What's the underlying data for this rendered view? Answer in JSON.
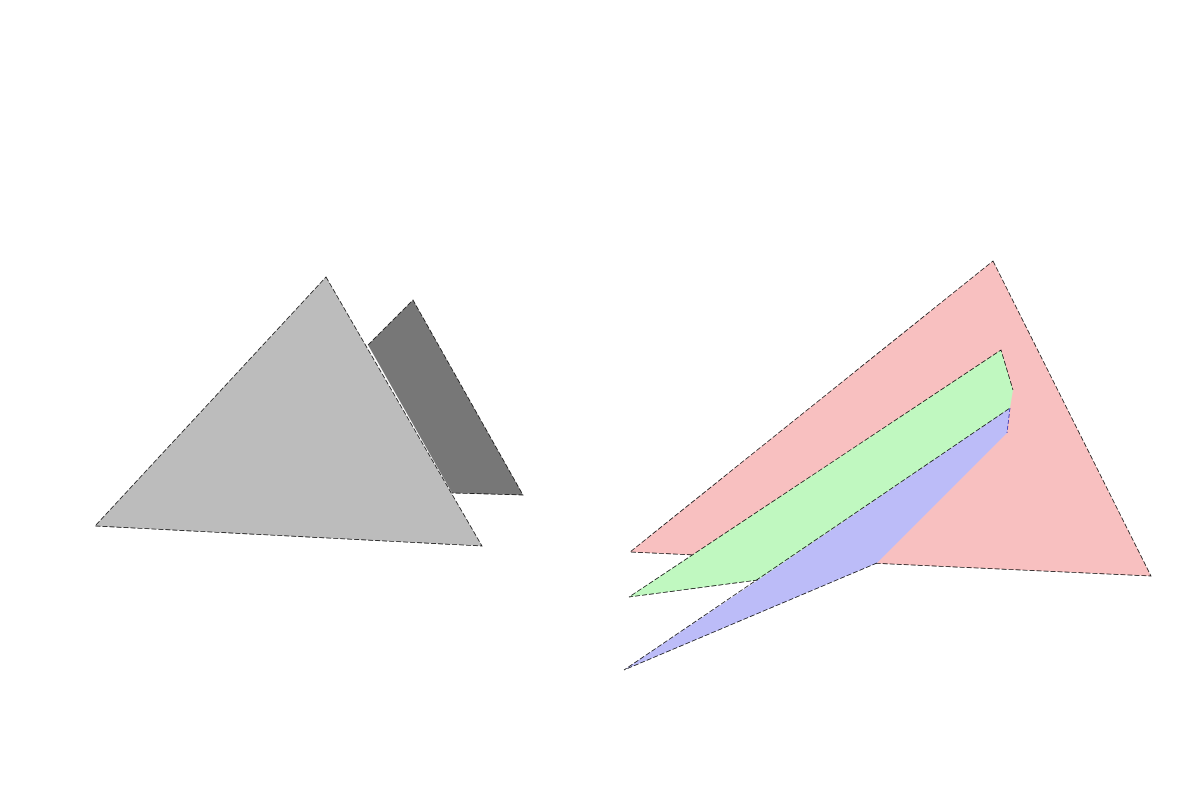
{
  "scene": {
    "background": "#ffffff",
    "left_group": {
      "description_colors": {
        "front_triangle": "#bcbcbc",
        "back_triangle": "#777777"
      }
    },
    "right_group": {
      "description_colors": {
        "red_triangle": "#f8c0c0",
        "green_strip": "#c0f8c0",
        "blue_strip": "#bcbcf8"
      }
    }
  }
}
